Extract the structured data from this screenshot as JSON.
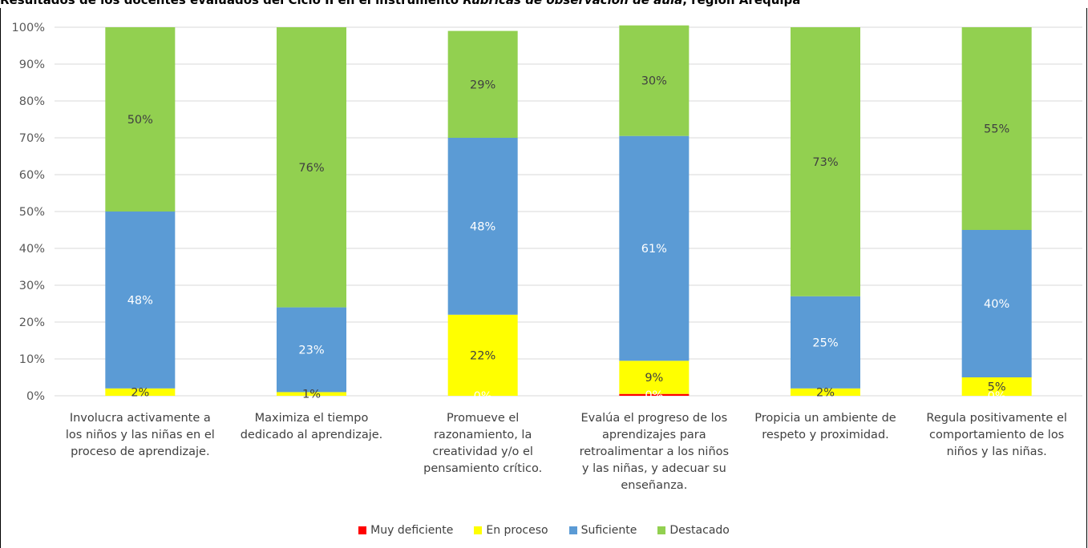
{
  "title": {
    "part1": "Resultados de los docentes evaluados del Ciclo II en el instrumento ",
    "italic": "Rúbricas de observación de aula",
    "part2": ", región Arequipa"
  },
  "chart_data": {
    "type": "bar",
    "stacked": true,
    "title": "Resultados de los docentes evaluados del Ciclo II en el instrumento Rúbricas de observación de aula, región Arequipa",
    "categories": [
      "Involucra activamente a los niños y las niñas en el proceso de aprendizaje.",
      "Maximiza el tiempo dedicado al aprendizaje.",
      "Promueve el razonamiento, la creatividad y/o el pensamiento crítico.",
      "Evalúa el progreso de los aprendizajes para retroalimentar a los niños y las niñas, y adecuar su enseñanza.",
      "Propicia un ambiente de respeto y proximidad.",
      "Regula positivamente el comportamiento de los niños y las niñas."
    ],
    "category_lines": [
      [
        "Involucra activamente a",
        "los niños y las niñas en el",
        "proceso de aprendizaje."
      ],
      [
        "Maximiza el tiempo",
        "dedicado al aprendizaje."
      ],
      [
        "Promueve el",
        "razonamiento, la",
        "creatividad y/o el",
        "pensamiento crítico."
      ],
      [
        "Evalúa el progreso de los",
        "aprendizajes para",
        "retroalimentar a los niños",
        "y las niñas, y adecuar su",
        "enseñanza."
      ],
      [
        "Propicia un ambiente de",
        "respeto y proximidad."
      ],
      [
        "Regula positivamente el",
        "comportamiento de los",
        "niños y las niñas."
      ]
    ],
    "series": [
      {
        "name": "Muy deficiente",
        "color": "#ff0000",
        "values": [
          0,
          0,
          0,
          0.5,
          0,
          0
        ],
        "labels": [
          "",
          "",
          "0%",
          "0%",
          "",
          "0%"
        ],
        "label_color": "#ffffff"
      },
      {
        "name": "En proceso",
        "color": "#ffff00",
        "values": [
          2,
          1,
          22,
          9,
          2,
          5
        ],
        "labels": [
          "2%",
          "1%",
          "22%",
          "9%",
          "2%",
          "5%"
        ],
        "label_color": "#404040"
      },
      {
        "name": "Suficiente",
        "color": "#5b9bd5",
        "values": [
          48,
          23,
          48,
          61,
          25,
          40
        ],
        "labels": [
          "48%",
          "23%",
          "48%",
          "61%",
          "25%",
          "40%"
        ],
        "label_color": "#ffffff"
      },
      {
        "name": "Destacado",
        "color": "#92d050",
        "values": [
          50,
          76,
          29,
          30,
          73,
          55
        ],
        "labels": [
          "50%",
          "76%",
          "29%",
          "30%",
          "73%",
          "55%"
        ],
        "label_color": "#404040"
      }
    ],
    "y_ticks": [
      "0%",
      "10%",
      "20%",
      "30%",
      "40%",
      "50%",
      "60%",
      "70%",
      "80%",
      "90%",
      "100%"
    ],
    "ylim": [
      0,
      100
    ],
    "grid": true,
    "legend_position": "bottom"
  }
}
